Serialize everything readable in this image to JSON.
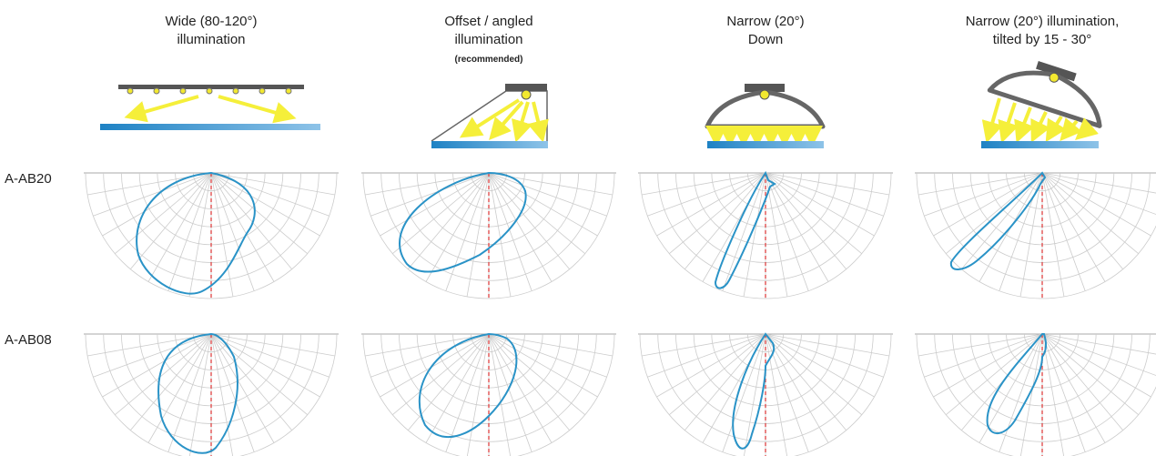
{
  "columns": [
    {
      "lines": [
        "Wide (80-120°)",
        "illumination"
      ]
    },
    {
      "lines": [
        "Offset / angled",
        "illumination"
      ],
      "note": "(recommended)"
    },
    {
      "lines": [
        "Narrow (20°)",
        "Down"
      ]
    },
    {
      "lines": [
        "Narrow (20°) illumination,",
        "tilted by 15 - 30°"
      ]
    }
  ],
  "rows": [
    {
      "label": "A-AB20"
    },
    {
      "label": "A-AB08"
    }
  ]
}
